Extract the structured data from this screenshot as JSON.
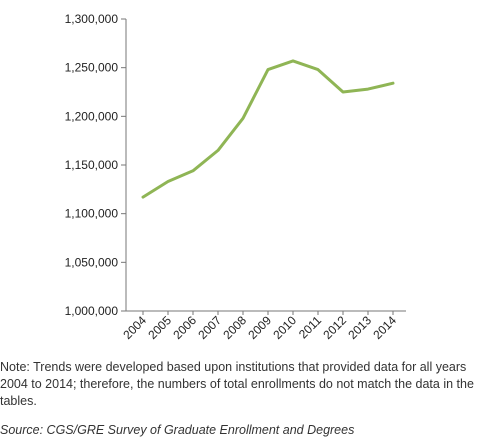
{
  "chart_data": {
    "type": "line",
    "categories": [
      "2004",
      "2005",
      "2006",
      "2007",
      "2008",
      "2009",
      "2010",
      "2011",
      "2012",
      "2013",
      "2014"
    ],
    "series": [
      {
        "values": [
          1117000,
          1133000,
          1144000,
          1165000,
          1198000,
          1248000,
          1257000,
          1248000,
          1225000,
          1228000,
          1234000
        ],
        "color": "#8fb555"
      }
    ],
    "ylim": [
      1000000,
      1300000
    ],
    "yticks": [
      "1,000,000",
      "1,050,000",
      "1,100,000",
      "1,150,000",
      "1,200,000",
      "1,250,000",
      "1,300,000"
    ],
    "ytick_values": [
      1000000,
      1050000,
      1100000,
      1150000,
      1200000,
      1250000,
      1300000
    ],
    "grid": false,
    "axis_color": "#777777"
  },
  "note": "Note: Trends were developed based upon institutions that provided data for all years 2004 to 2014; therefore, the numbers of total enrollments do not match the data in the tables.",
  "source": "Source: CGS/GRE Survey of Graduate Enrollment and Degrees"
}
